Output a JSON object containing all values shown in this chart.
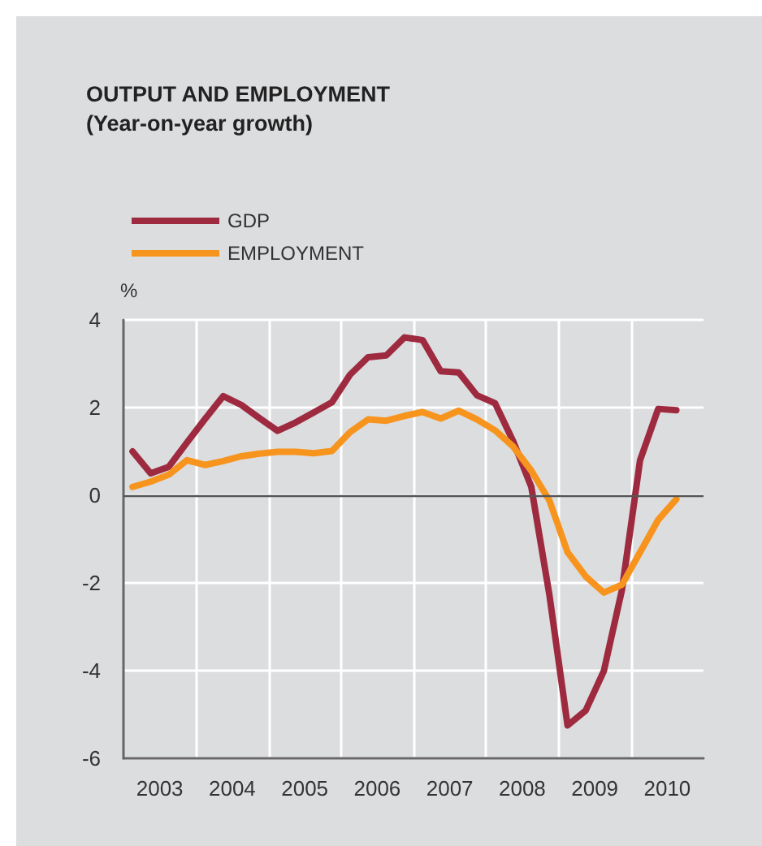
{
  "chart_data": {
    "type": "line",
    "title": "OUTPUT AND EMPLOYMENT",
    "subtitle": "(Year-on-year growth)",
    "ylabel": "%",
    "x": [
      2003.125,
      2003.375,
      2003.625,
      2003.875,
      2004.125,
      2004.375,
      2004.625,
      2004.875,
      2005.125,
      2005.375,
      2005.625,
      2005.875,
      2006.125,
      2006.375,
      2006.625,
      2006.875,
      2007.125,
      2007.375,
      2007.625,
      2007.875,
      2008.125,
      2008.375,
      2008.625,
      2008.875,
      2009.125,
      2009.375,
      2009.625,
      2009.875,
      2010.125,
      2010.375,
      2010.625
    ],
    "series": [
      {
        "name": "GDP",
        "color": "#9e2a3f",
        "values": [
          1.0,
          0.5,
          0.65,
          1.2,
          1.74,
          2.26,
          2.06,
          1.76,
          1.47,
          1.66,
          1.89,
          2.12,
          2.75,
          3.15,
          3.19,
          3.6,
          3.54,
          2.83,
          2.8,
          2.28,
          2.1,
          1.23,
          0.19,
          -2.28,
          -5.25,
          -4.91,
          -4.01,
          -2.16,
          0.8,
          1.97,
          1.94
        ]
      },
      {
        "name": "EMPLOYMENT",
        "color": "#f7941d",
        "values": [
          0.19,
          0.31,
          0.47,
          0.8,
          0.69,
          0.78,
          0.89,
          0.95,
          0.99,
          0.99,
          0.96,
          1.01,
          1.44,
          1.73,
          1.7,
          1.81,
          1.9,
          1.75,
          1.93,
          1.73,
          1.48,
          1.11,
          0.56,
          -0.12,
          -1.3,
          -1.85,
          -2.22,
          -2.04,
          -1.3,
          -0.56,
          -0.09
        ]
      }
    ],
    "xlim": [
      2003,
      2011
    ],
    "xticks": [
      {
        "value": 2003.5,
        "label": "2003"
      },
      {
        "value": 2004,
        "label": null
      },
      {
        "value": 2004.5,
        "label": "2004"
      },
      {
        "value": 2005,
        "label": null
      },
      {
        "value": 2005.5,
        "label": "2005"
      },
      {
        "value": 2006,
        "label": null
      },
      {
        "value": 2006.5,
        "label": "2006"
      },
      {
        "value": 2007,
        "label": null
      },
      {
        "value": 2007.5,
        "label": "2007"
      },
      {
        "value": 2008,
        "label": null
      },
      {
        "value": 2008.5,
        "label": "2008"
      },
      {
        "value": 2009,
        "label": null
      },
      {
        "value": 2009.5,
        "label": "2009"
      },
      {
        "value": 2010,
        "label": null
      },
      {
        "value": 2010.5,
        "label": "2010"
      }
    ],
    "ylim": [
      -6,
      4
    ],
    "yticks": [
      -6,
      -4,
      -2,
      0,
      2,
      4
    ],
    "ref_lines": [
      {
        "axis": "y",
        "value": 0,
        "label": null,
        "color": "#555555"
      }
    ],
    "grid": true,
    "legend": "top left",
    "marker": "none",
    "line_style": "solid"
  }
}
